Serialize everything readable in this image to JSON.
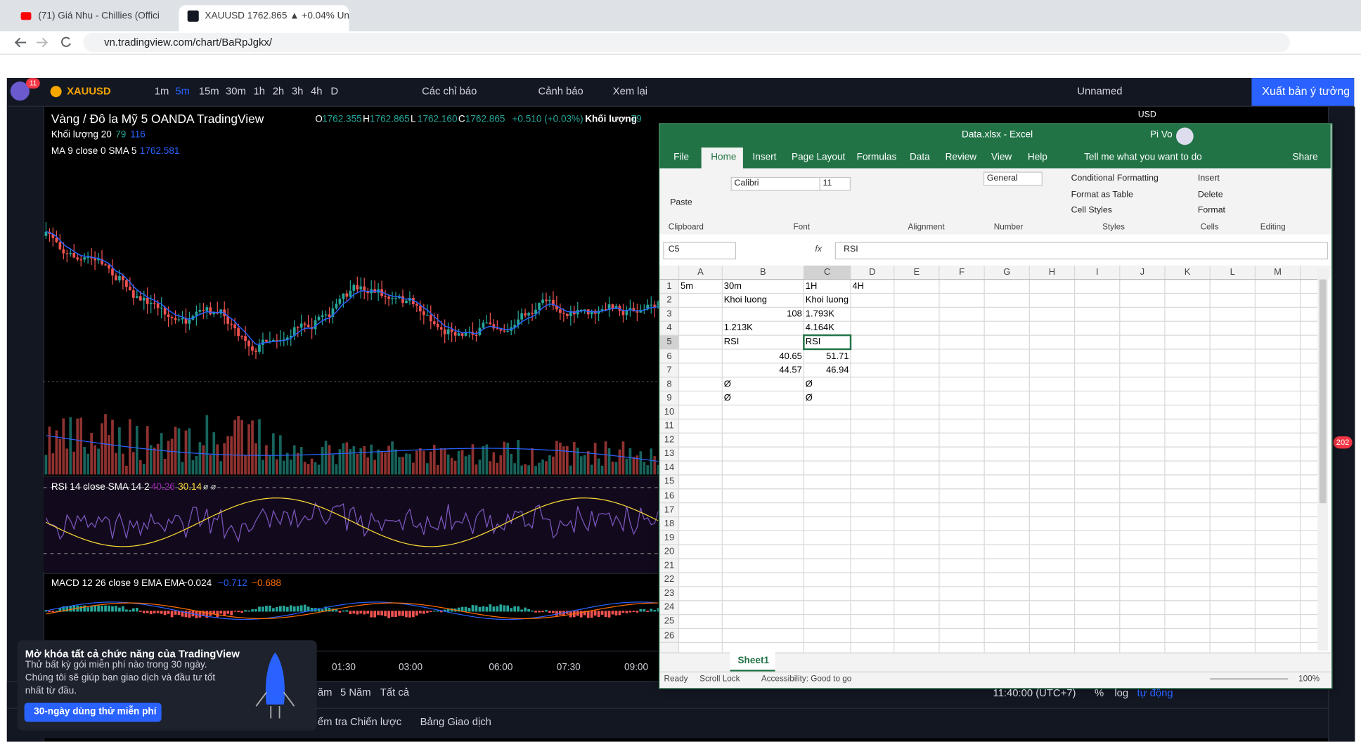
{
  "browser": {
    "tabs": [
      "(71) Giá Nhu - Chillies (Offici",
      "XAUUSD 1762.865 ▲ +0.04% Un"
    ],
    "url": "vn.tradingview.com/chart/BaRpJgkx/"
  },
  "tradingview": {
    "notification_badge": "11",
    "symbol": "XAUUSD",
    "intervals": [
      "1m",
      "5m",
      "15m",
      "30m",
      "1h",
      "2h",
      "3h",
      "4h",
      "D"
    ],
    "toolbar": [
      "Các chỉ báo",
      "Cảnh báo",
      "Xem lại"
    ],
    "layout_name": "Unnamed",
    "publish": "Xuất bản ý tưởng",
    "legend": {
      "title": "Vàng / Đô la Mỹ  5  OANDA  TradingView",
      "ohlc": [
        [
          "O",
          "1762.355"
        ],
        [
          "H",
          "1762.865"
        ],
        [
          "L",
          "1762.160"
        ],
        [
          "C",
          "1762.865"
        ]
      ],
      "change": "+0.510 (+0.03%)",
      "volume_label": "Khối lượng",
      "volume_value": "79",
      "volume_study": "Khối lượng 20",
      "volume_study_values": [
        "79",
        "116"
      ],
      "ma_study": "MA 9 close 0 SMA 5",
      "ma_value": "1762.581"
    },
    "currency": "USD",
    "rsi": {
      "label": "RSI 14 close SMA 14 2",
      "values": [
        "40.26",
        "30.14"
      ],
      "extra": "ø ø"
    },
    "macd": {
      "label": "MACD 12 26 close 9 EMA EMA",
      "values": [
        "−0.024",
        "−0.712",
        "−0.688"
      ]
    },
    "time_labels": [
      "01:30",
      "03:00",
      "06:00",
      "07:30",
      "09:00"
    ],
    "ranges": [
      "ăm",
      "5 Năm",
      "Tất cả"
    ],
    "clock": "11:40:00 (UTC+7)",
    "scale_options": [
      "%",
      "log",
      "tự động"
    ],
    "bottom_tabs": [
      "ểm tra Chiến lược",
      "Bảng Giao dịch"
    ],
    "side_badge": "202",
    "promo": {
      "title": "Mở khóa tất cả chức năng của TradingView",
      "body": "Thử bất kỳ gói miễn phí nào trong 30 ngày. Chúng tôi sẽ giúp bạn giao dịch và đầu tư tốt nhất từ đầu.",
      "button": "30-ngày dùng thử miễn phí"
    }
  },
  "excel": {
    "title": "Data.xlsx  -  Excel",
    "user": "Pi Vo",
    "tabs": [
      "File",
      "Home",
      "Insert",
      "Page Layout",
      "Formulas",
      "Data",
      "Review",
      "View",
      "Help"
    ],
    "tell_me": "Tell me what you want to do",
    "share": "Share",
    "ribbon": {
      "paste": "Paste",
      "font_name": "Calibri",
      "font_size": "11",
      "number_format": "General",
      "styles": [
        "Conditional Formatting",
        "Format as Table",
        "Cell Styles"
      ],
      "cells": [
        "Insert",
        "Delete",
        "Format"
      ],
      "groups": [
        "Clipboard",
        "Font",
        "Alignment",
        "Number",
        "Styles",
        "Cells",
        "Editing"
      ]
    },
    "name_box": "C5",
    "fx": "fx",
    "formula": "RSI",
    "column_headers": [
      "A",
      "B",
      "C",
      "D",
      "E",
      "F",
      "G",
      "H",
      "I",
      "J",
      "K",
      "L",
      "M"
    ],
    "row_numbers": [
      "1",
      "2",
      "3",
      "4",
      "5",
      "6",
      "7",
      "8",
      "9",
      "10",
      "11",
      "12",
      "13",
      "14",
      "15",
      "16",
      "17",
      "18",
      "19",
      "20",
      "21",
      "22",
      "23",
      "24",
      "25",
      "26"
    ],
    "rows": [
      [
        "5m",
        "30m",
        "1H",
        "4H"
      ],
      [
        null,
        "Khoi luong",
        "Khoi luong",
        null
      ],
      [
        null,
        "108",
        "1.793K",
        null
      ],
      [
        null,
        "1.213K",
        "4.164K",
        null
      ],
      [
        null,
        "RSI",
        "RSI",
        null
      ],
      [
        null,
        "40.65",
        "51.71",
        null
      ],
      [
        null,
        "44.57",
        "46.94",
        null
      ],
      [
        null,
        "Ø",
        "Ø",
        null
      ],
      [
        null,
        "Ø",
        "Ø",
        null
      ]
    ],
    "sheet": "Sheet1",
    "status": [
      "Ready",
      "Scroll Lock",
      "Accessibility: Good to go"
    ],
    "zoom": "100%"
  }
}
